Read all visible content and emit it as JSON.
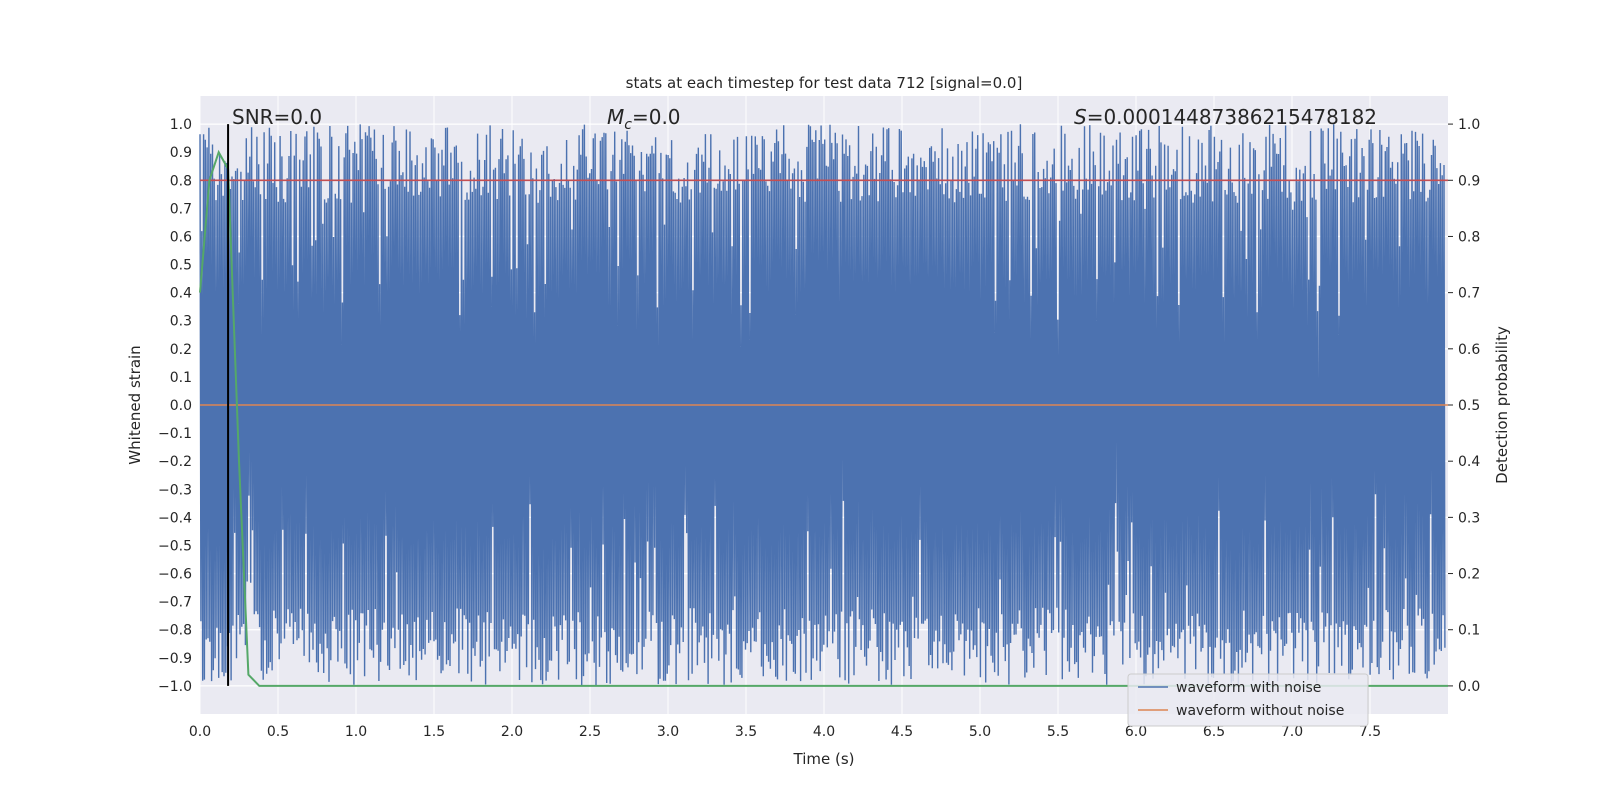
{
  "chart_data": {
    "type": "line",
    "title": "stats at each timestep for test data 712 [signal=0.0]",
    "xlabel": "Time (s)",
    "ylabel_left": "Whitened strain",
    "ylabel_right": "Detection probability",
    "xlim": [
      0.0,
      8.0
    ],
    "ylim_left": [
      -1.1,
      1.1
    ],
    "ylim_right": [
      -0.05,
      1.05
    ],
    "x_ticks": [
      "0.0",
      "0.5",
      "1.0",
      "1.5",
      "2.0",
      "2.5",
      "3.0",
      "3.5",
      "4.0",
      "4.5",
      "5.0",
      "5.5",
      "6.0",
      "6.5",
      "7.0",
      "7.5"
    ],
    "y_ticks_left": [
      "1.0",
      "0.9",
      "0.8",
      "0.7",
      "0.6",
      "0.5",
      "0.4",
      "0.3",
      "0.2",
      "0.1",
      "0.0",
      "−0.1",
      "−0.2",
      "−0.3",
      "−0.4",
      "−0.5",
      "−0.6",
      "−0.7",
      "−0.8",
      "−0.9",
      "−1.0"
    ],
    "y_ticks_right": [
      "1.0",
      "0.9",
      "0.8",
      "0.7",
      "0.6",
      "0.5",
      "0.4",
      "0.3",
      "0.2",
      "0.1",
      "0.0"
    ],
    "annotations": {
      "snr": "SNR=0.0",
      "mc_symbol": "M",
      "mc_sub": "c",
      "mc_value": "=0.0",
      "s_symbol": "S",
      "s_value": "=0.00014487386215478182"
    },
    "series": [
      {
        "name": "waveform with noise",
        "color": "#4c72b0",
        "description": "whitened noise strain spanning roughly -1.0 to 1.0 over 0-8 s"
      },
      {
        "name": "waveform without noise",
        "color": "#dd8452",
        "values_constant": 0.0
      },
      {
        "color": "#55a868",
        "axis": "right",
        "x": [
          0.0,
          0.06,
          0.12,
          0.18,
          0.25,
          0.31,
          0.38,
          8.0
        ],
        "values": [
          0.7,
          0.9,
          0.95,
          0.92,
          0.4,
          0.02,
          0.0,
          0.0
        ]
      },
      {
        "color": "#c44e52",
        "axis": "right",
        "values_constant": 0.9
      }
    ],
    "vline_x": 0.18,
    "vline_color": "#000000",
    "grid": true,
    "background": "#eaeaf2",
    "legend_position": "lower-right"
  }
}
